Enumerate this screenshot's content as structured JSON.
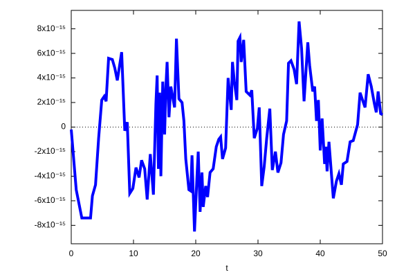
{
  "chart_data": {
    "type": "line",
    "xlabel": "t",
    "color": "#0000ff",
    "x": [
      0,
      0.8,
      1.7,
      2.8,
      3.1,
      3.4,
      3.9,
      4.4,
      4.9,
      5.3,
      5.6,
      6.0,
      6.6,
      7.0,
      7.4,
      8.1,
      8.6,
      9.0,
      9.4,
      9.9,
      10.4,
      10.9,
      11.3,
      11.8,
      12.2,
      12.7,
      13.2,
      13.6,
      13.8,
      14.0,
      14.2,
      14.4,
      14.7,
      15.0,
      15.2,
      15.4,
      15.7,
      16.0,
      16.6,
      16.9,
      17.3,
      17.8,
      18.1,
      18.4,
      18.9,
      19.2,
      19.4,
      19.8,
      20.2,
      20.4,
      20.7,
      21.0,
      21.2,
      21.6,
      21.9,
      22.3,
      22.8,
      23.3,
      23.7,
      24.0,
      24.3,
      24.8,
      25.2,
      25.7,
      25.9,
      26.2,
      26.6,
      26.8,
      27.1,
      27.3,
      27.7,
      28.1,
      28.7,
      29.0,
      29.4,
      29.9,
      30.2,
      30.6,
      31.0,
      31.4,
      31.9,
      32.3,
      32.8,
      33.2,
      33.7,
      34.1,
      34.6,
      34.9,
      35.3,
      35.8,
      36.2,
      36.6,
      37.0,
      37.4,
      38.0,
      38.3,
      38.8,
      39.1,
      39.4,
      39.7,
      40.0,
      40.3,
      40.7,
      40.9,
      41.1,
      41.4,
      42.1,
      42.6,
      43.0,
      43.4,
      43.7,
      44.3,
      44.8,
      45.3,
      46.0,
      46.4,
      47.2,
      47.7,
      48.2,
      48.7,
      49.0,
      49.3,
      49.7,
      50.0
    ],
    "values": [
      -2e-16,
      -5.1e-15,
      -7.4e-15,
      -7.4e-15,
      -7.4e-15,
      -5.6e-15,
      -4.7e-15,
      -9e-16,
      2.2e-15,
      2.5e-15,
      2.1e-15,
      5.6e-15,
      5.5e-15,
      4.8e-15,
      3.8e-15,
      6.1e-15,
      -3e-16,
      4e-16,
      -5.4e-15,
      -5e-15,
      -3.3e-15,
      -4.1e-15,
      -2.7e-15,
      -3.4e-15,
      -5.9e-15,
      -2.2e-15,
      -5.5e-15,
      1.9e-15,
      4.2e-15,
      -3.4e-15,
      2.8e-15,
      -4e-15,
      3.7e-15,
      -6e-16,
      3.2e-15,
      5.3e-15,
      8e-16,
      3.3e-15,
      1.6e-15,
      7.2e-15,
      2.3e-15,
      2e-15,
      5e-16,
      -2.6e-15,
      -5.1e-15,
      -5.2e-15,
      -2.3e-15,
      -8.5e-15,
      -4e-15,
      -2e-15,
      -6.9e-15,
      -3.7e-15,
      -6.5e-15,
      -4.8e-15,
      -5.7e-15,
      -3.7e-15,
      -3.4e-15,
      -1.6e-15,
      -1e-15,
      -8e-16,
      -2.6e-15,
      -1.7e-15,
      4e-15,
      1.4e-15,
      5.3e-15,
      3.7e-15,
      2.2e-15,
      7e-15,
      7.3e-15,
      5.3e-15,
      7.1e-15,
      2.9e-15,
      2.6e-15,
      3e-15,
      -9e-16,
      -1e-16,
      1.6e-15,
      -4.8e-15,
      -3.2e-15,
      -9e-16,
      1.5e-15,
      -3.5e-15,
      -2e-15,
      -3.7e-15,
      -2.9e-15,
      -6e-16,
      5e-16,
      5.2e-15,
      5.4e-15,
      4.7e-15,
      3.5e-15,
      8.6e-15,
      6.4e-15,
      2.1e-15,
      6.9e-15,
      5e-15,
      2.9e-15,
      3.3e-15,
      5e-16,
      2.2e-15,
      -1.9e-15,
      7e-16,
      -3e-15,
      -1.6e-15,
      -3.6e-15,
      -1.2e-15,
      -5.8e-15,
      -4.4e-15,
      -3.8e-15,
      -4.7e-15,
      -3e-15,
      -2.8e-15,
      -1.2e-15,
      -1.1e-15,
      2e-16,
      2.8e-15,
      1.6e-15,
      4.3e-15,
      3.3e-15,
      1.9e-15,
      1.2e-15,
      2.9e-15,
      1.1e-15,
      1e-15
    ],
    "xlim": [
      0,
      50
    ],
    "xticks": [
      0,
      10,
      20,
      30,
      40,
      50
    ],
    "ylim": [
      -9.5e-15,
      9.5e-15
    ],
    "yticks": [
      {
        "value": -8e-15,
        "label": "-8x10⁻¹⁵"
      },
      {
        "value": -6e-15,
        "label": "-6x10⁻¹⁵"
      },
      {
        "value": -4e-15,
        "label": "-4x10⁻¹⁵"
      },
      {
        "value": -2e-15,
        "label": "-2x10⁻¹⁵"
      },
      0,
      {
        "value": 2e-15,
        "label": "2x10⁻¹⁵"
      },
      {
        "value": 4e-15,
        "label": "4x10⁻¹⁵"
      },
      {
        "value": 6e-15,
        "label": "6x10⁻¹⁵"
      },
      {
        "value": 8e-15,
        "label": "8x10⁻¹⁵"
      }
    ]
  }
}
